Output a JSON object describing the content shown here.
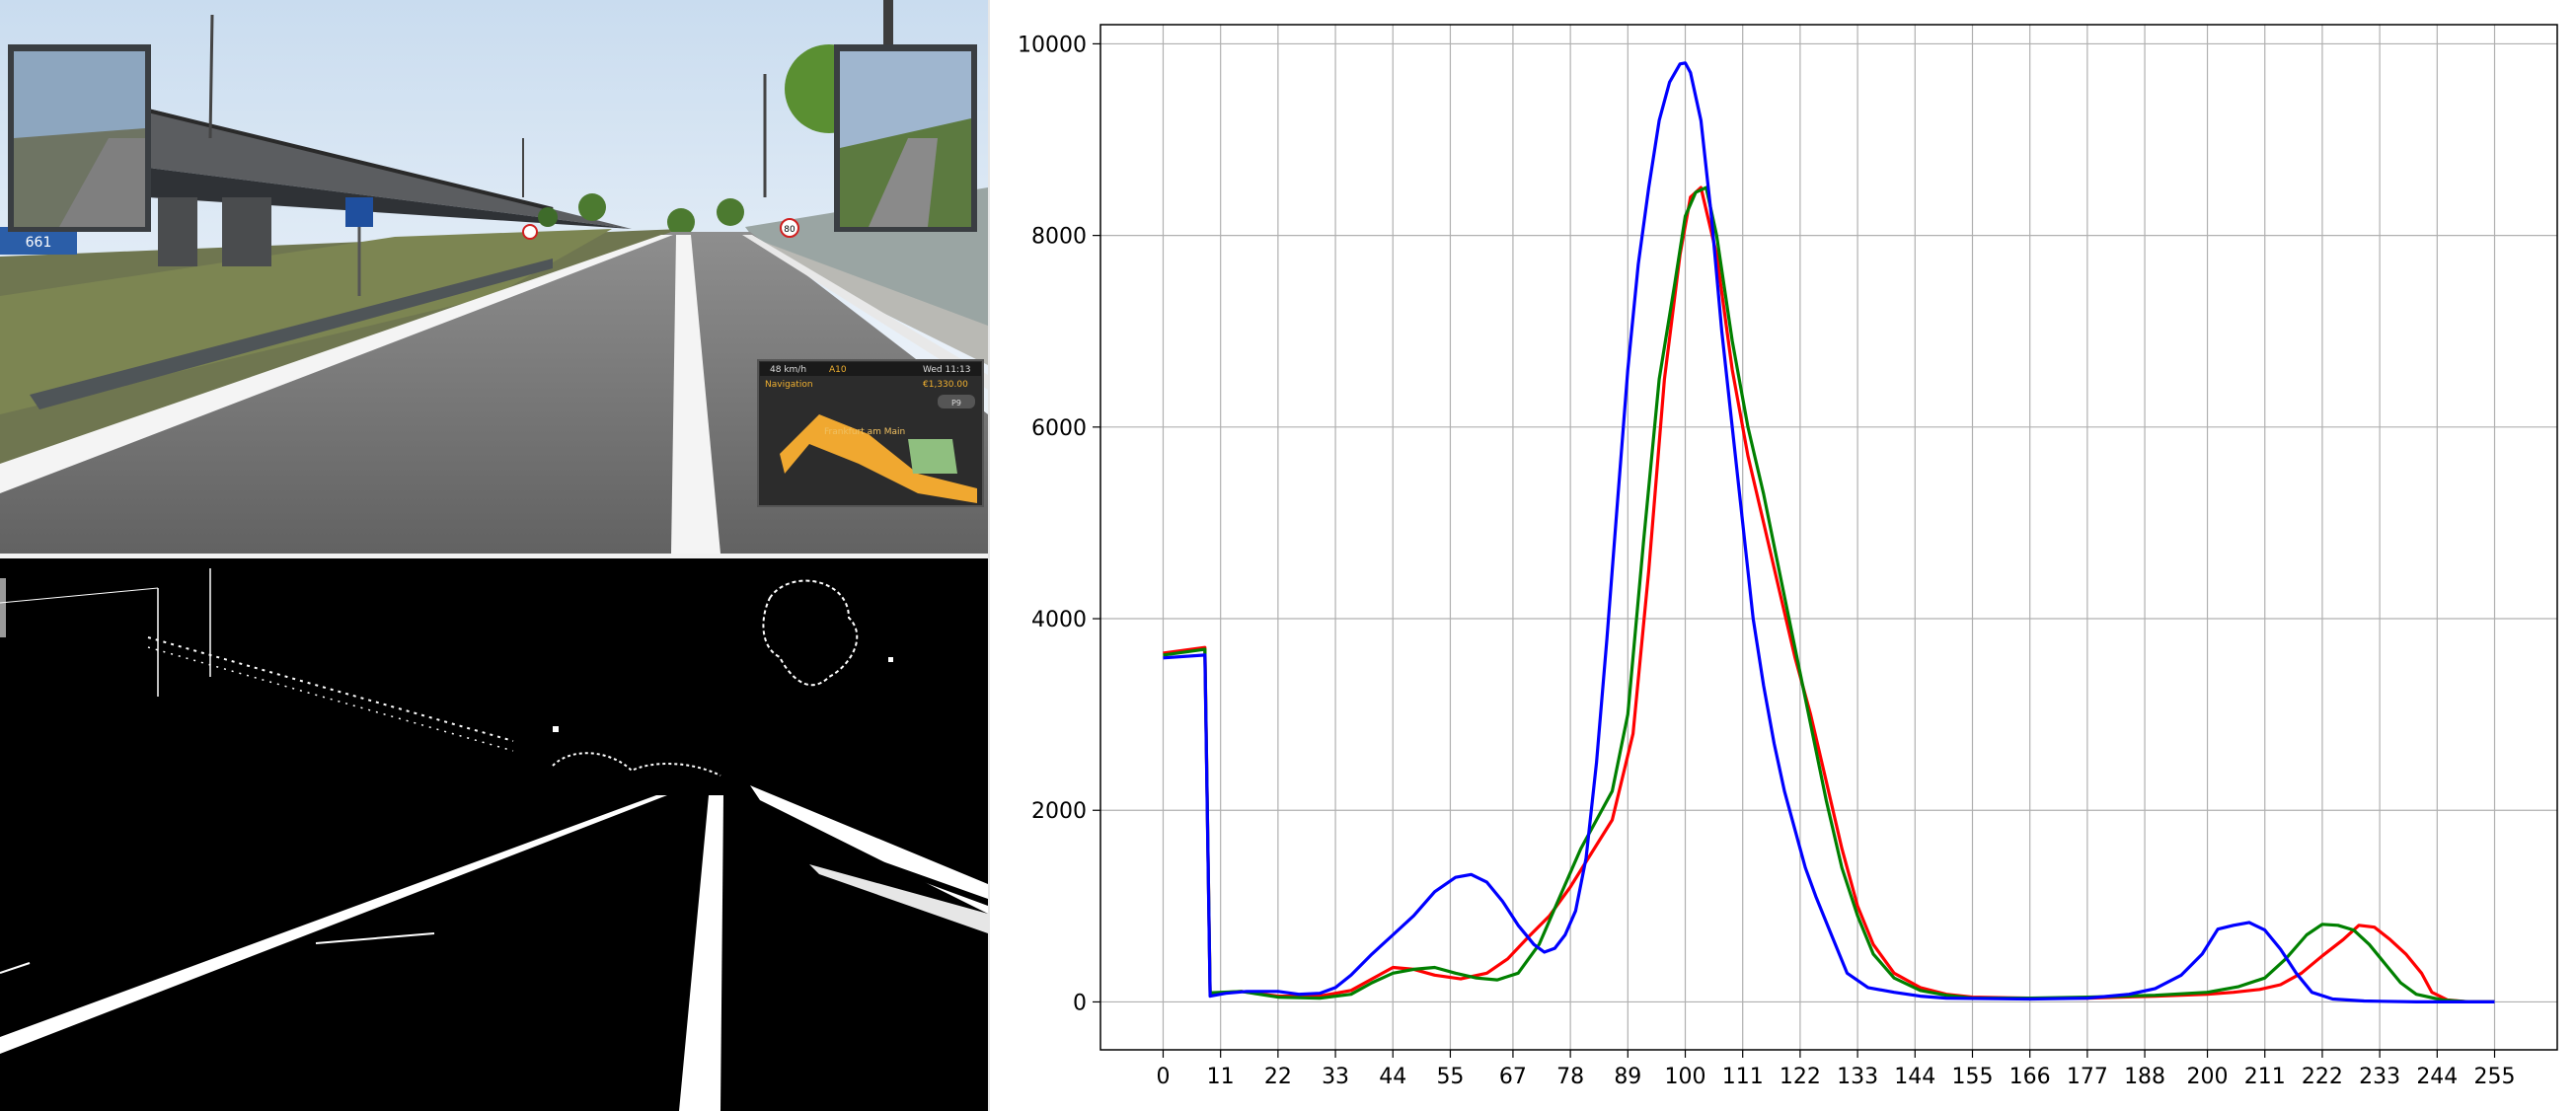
{
  "game_view": {
    "exit_sign_text": "661",
    "speed_limit_sign": "80",
    "gps": {
      "speed": "48 km/h",
      "road": "A10",
      "time": "Wed 11:13",
      "title": "Navigation",
      "distance": "€1,330.00",
      "button": "P9",
      "city": "Frankfurt am Main"
    }
  },
  "colors": {
    "red": "#ff0000",
    "green": "#008000",
    "blue": "#0000ff",
    "grid": "#b0b0b0"
  },
  "chart_data": {
    "type": "line",
    "title": "",
    "xlabel": "",
    "ylabel": "",
    "xlim": [
      -12,
      267
    ],
    "ylim": [
      -500,
      10200
    ],
    "xticks": [
      0,
      11,
      22,
      33,
      44,
      55,
      67,
      78,
      89,
      100,
      111,
      122,
      133,
      144,
      155,
      166,
      177,
      188,
      200,
      211,
      222,
      233,
      244,
      255
    ],
    "yticks": [
      0,
      2000,
      4000,
      6000,
      8000,
      10000
    ],
    "grid": true,
    "series": [
      {
        "color": "red",
        "points": [
          [
            0,
            3640
          ],
          [
            8,
            3700
          ],
          [
            9,
            90
          ],
          [
            15,
            110
          ],
          [
            22,
            60
          ],
          [
            30,
            60
          ],
          [
            36,
            120
          ],
          [
            44,
            360
          ],
          [
            48,
            340
          ],
          [
            52,
            280
          ],
          [
            57,
            240
          ],
          [
            62,
            300
          ],
          [
            66,
            450
          ],
          [
            70,
            680
          ],
          [
            74,
            900
          ],
          [
            78,
            1200
          ],
          [
            82,
            1550
          ],
          [
            86,
            1900
          ],
          [
            90,
            2800
          ],
          [
            93,
            4500
          ],
          [
            96,
            6500
          ],
          [
            99,
            7800
          ],
          [
            101,
            8400
          ],
          [
            103,
            8500
          ],
          [
            106,
            7800
          ],
          [
            109,
            6600
          ],
          [
            112,
            5700
          ],
          [
            115,
            5000
          ],
          [
            118,
            4300
          ],
          [
            121,
            3600
          ],
          [
            124,
            3000
          ],
          [
            127,
            2300
          ],
          [
            130,
            1600
          ],
          [
            133,
            1000
          ],
          [
            136,
            600
          ],
          [
            140,
            300
          ],
          [
            145,
            150
          ],
          [
            150,
            80
          ],
          [
            155,
            50
          ],
          [
            166,
            40
          ],
          [
            177,
            40
          ],
          [
            190,
            60
          ],
          [
            200,
            80
          ],
          [
            205,
            100
          ],
          [
            210,
            130
          ],
          [
            214,
            180
          ],
          [
            218,
            300
          ],
          [
            222,
            480
          ],
          [
            226,
            650
          ],
          [
            229,
            800
          ],
          [
            232,
            780
          ],
          [
            235,
            650
          ],
          [
            238,
            500
          ],
          [
            241,
            300
          ],
          [
            243,
            100
          ],
          [
            246,
            20
          ],
          [
            250,
            0
          ],
          [
            255,
            0
          ]
        ]
      },
      {
        "color": "green",
        "points": [
          [
            0,
            3620
          ],
          [
            8,
            3680
          ],
          [
            9,
            95
          ],
          [
            15,
            110
          ],
          [
            22,
            50
          ],
          [
            30,
            40
          ],
          [
            36,
            80
          ],
          [
            40,
            200
          ],
          [
            44,
            300
          ],
          [
            48,
            340
          ],
          [
            52,
            360
          ],
          [
            56,
            300
          ],
          [
            60,
            250
          ],
          [
            64,
            230
          ],
          [
            68,
            300
          ],
          [
            72,
            600
          ],
          [
            76,
            1100
          ],
          [
            80,
            1600
          ],
          [
            83,
            1900
          ],
          [
            86,
            2200
          ],
          [
            89,
            3000
          ],
          [
            92,
            4800
          ],
          [
            95,
            6500
          ],
          [
            98,
            7500
          ],
          [
            100,
            8200
          ],
          [
            102,
            8450
          ],
          [
            104,
            8500
          ],
          [
            106,
            8000
          ],
          [
            109,
            6900
          ],
          [
            112,
            6000
          ],
          [
            115,
            5300
          ],
          [
            118,
            4500
          ],
          [
            121,
            3700
          ],
          [
            124,
            2900
          ],
          [
            127,
            2100
          ],
          [
            130,
            1400
          ],
          [
            133,
            900
          ],
          [
            136,
            500
          ],
          [
            140,
            250
          ],
          [
            145,
            120
          ],
          [
            150,
            70
          ],
          [
            155,
            40
          ],
          [
            166,
            40
          ],
          [
            177,
            50
          ],
          [
            190,
            70
          ],
          [
            200,
            100
          ],
          [
            206,
            160
          ],
          [
            211,
            250
          ],
          [
            215,
            450
          ],
          [
            219,
            700
          ],
          [
            222,
            810
          ],
          [
            225,
            800
          ],
          [
            228,
            750
          ],
          [
            231,
            600
          ],
          [
            234,
            400
          ],
          [
            237,
            200
          ],
          [
            240,
            80
          ],
          [
            245,
            20
          ],
          [
            250,
            0
          ],
          [
            255,
            0
          ]
        ]
      },
      {
        "color": "blue",
        "points": [
          [
            0,
            3590
          ],
          [
            8,
            3620
          ],
          [
            9,
            60
          ],
          [
            12,
            90
          ],
          [
            16,
            110
          ],
          [
            22,
            110
          ],
          [
            26,
            80
          ],
          [
            30,
            90
          ],
          [
            33,
            150
          ],
          [
            36,
            280
          ],
          [
            40,
            500
          ],
          [
            44,
            700
          ],
          [
            48,
            900
          ],
          [
            52,
            1150
          ],
          [
            56,
            1300
          ],
          [
            59,
            1330
          ],
          [
            62,
            1250
          ],
          [
            65,
            1050
          ],
          [
            68,
            800
          ],
          [
            71,
            600
          ],
          [
            73,
            520
          ],
          [
            75,
            560
          ],
          [
            77,
            700
          ],
          [
            79,
            950
          ],
          [
            81,
            1500
          ],
          [
            83,
            2500
          ],
          [
            85,
            3800
          ],
          [
            87,
            5200
          ],
          [
            89,
            6600
          ],
          [
            91,
            7700
          ],
          [
            93,
            8500
          ],
          [
            95,
            9200
          ],
          [
            97,
            9600
          ],
          [
            99,
            9790
          ],
          [
            100,
            9800
          ],
          [
            101,
            9700
          ],
          [
            103,
            9200
          ],
          [
            105,
            8200
          ],
          [
            107,
            7000
          ],
          [
            109,
            6000
          ],
          [
            111,
            5000
          ],
          [
            113,
            4000
          ],
          [
            115,
            3300
          ],
          [
            117,
            2700
          ],
          [
            119,
            2200
          ],
          [
            121,
            1800
          ],
          [
            123,
            1400
          ],
          [
            125,
            1100
          ],
          [
            128,
            700
          ],
          [
            131,
            300
          ],
          [
            135,
            150
          ],
          [
            140,
            100
          ],
          [
            145,
            60
          ],
          [
            150,
            40
          ],
          [
            166,
            30
          ],
          [
            177,
            40
          ],
          [
            185,
            80
          ],
          [
            190,
            140
          ],
          [
            195,
            280
          ],
          [
            199,
            500
          ],
          [
            202,
            760
          ],
          [
            205,
            800
          ],
          [
            208,
            830
          ],
          [
            211,
            750
          ],
          [
            214,
            550
          ],
          [
            217,
            300
          ],
          [
            220,
            100
          ],
          [
            224,
            30
          ],
          [
            230,
            10
          ],
          [
            240,
            0
          ],
          [
            255,
            0
          ]
        ]
      }
    ]
  }
}
